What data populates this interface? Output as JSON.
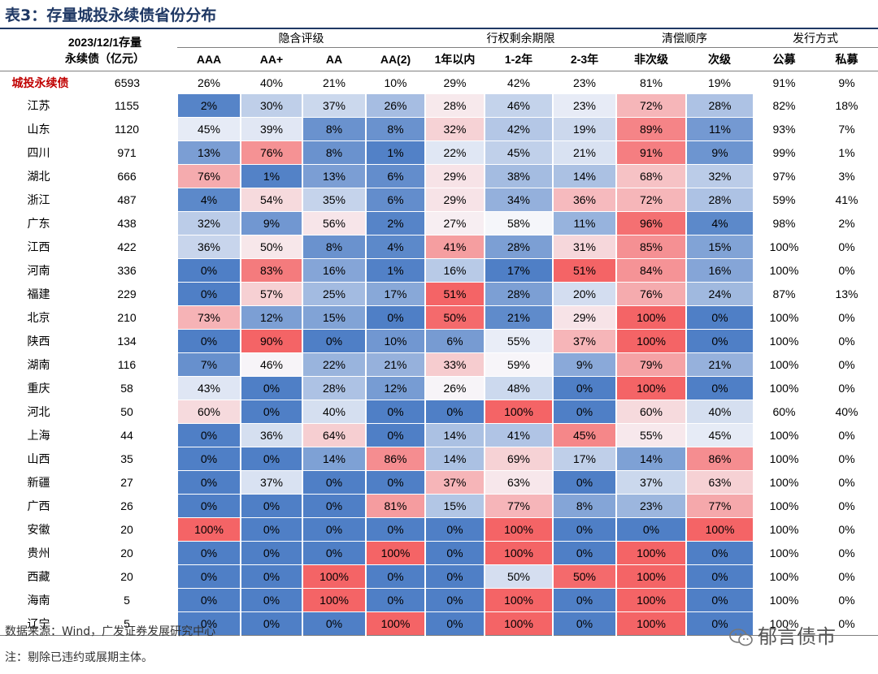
{
  "title": "表3：存量城投永续债省份分布",
  "header": {
    "col0": [
      "2023/12/1存量",
      "永续债（亿元）"
    ],
    "groups": [
      "隐含评级",
      "行权剩余期限",
      "清偿顺序",
      "发行方式"
    ],
    "subheaders": [
      "AAA",
      "AA+",
      "AA",
      "AA(2)",
      "1年以内",
      "1-2年",
      "2-3年",
      "非次级",
      "次级",
      "公募",
      "私募"
    ]
  },
  "total": {
    "name": "城投永续债",
    "value": "6593",
    "cells": [
      "26%",
      "40%",
      "21%",
      "10%",
      "29%",
      "42%",
      "23%",
      "81%",
      "19%",
      "91%",
      "9%"
    ]
  },
  "rows": [
    {
      "name": "江苏",
      "value": "1155",
      "cells": [
        "2%",
        "30%",
        "37%",
        "26%",
        "28%",
        "46%",
        "23%",
        "72%",
        "28%",
        "82%",
        "18%"
      ]
    },
    {
      "name": "山东",
      "value": "1120",
      "cells": [
        "45%",
        "39%",
        "8%",
        "8%",
        "32%",
        "42%",
        "19%",
        "89%",
        "11%",
        "93%",
        "7%"
      ]
    },
    {
      "name": "四川",
      "value": "971",
      "cells": [
        "13%",
        "76%",
        "8%",
        "1%",
        "22%",
        "45%",
        "21%",
        "91%",
        "9%",
        "99%",
        "1%"
      ]
    },
    {
      "name": "湖北",
      "value": "666",
      "cells": [
        "76%",
        "1%",
        "13%",
        "6%",
        "29%",
        "38%",
        "14%",
        "68%",
        "32%",
        "97%",
        "3%"
      ]
    },
    {
      "name": "浙江",
      "value": "487",
      "cells": [
        "4%",
        "54%",
        "35%",
        "6%",
        "29%",
        "34%",
        "36%",
        "72%",
        "28%",
        "59%",
        "41%"
      ]
    },
    {
      "name": "广东",
      "value": "438",
      "cells": [
        "32%",
        "9%",
        "56%",
        "2%",
        "27%",
        "58%",
        "11%",
        "96%",
        "4%",
        "98%",
        "2%"
      ]
    },
    {
      "name": "江西",
      "value": "422",
      "cells": [
        "36%",
        "50%",
        "8%",
        "4%",
        "41%",
        "28%",
        "31%",
        "85%",
        "15%",
        "100%",
        "0%"
      ]
    },
    {
      "name": "河南",
      "value": "336",
      "cells": [
        "0%",
        "83%",
        "16%",
        "1%",
        "16%",
        "17%",
        "51%",
        "84%",
        "16%",
        "100%",
        "0%"
      ]
    },
    {
      "name": "福建",
      "value": "229",
      "cells": [
        "0%",
        "57%",
        "25%",
        "17%",
        "51%",
        "28%",
        "20%",
        "76%",
        "24%",
        "87%",
        "13%"
      ]
    },
    {
      "name": "北京",
      "value": "210",
      "cells": [
        "73%",
        "12%",
        "15%",
        "0%",
        "50%",
        "21%",
        "29%",
        "100%",
        "0%",
        "100%",
        "0%"
      ]
    },
    {
      "name": "陕西",
      "value": "134",
      "cells": [
        "0%",
        "90%",
        "0%",
        "10%",
        "6%",
        "55%",
        "37%",
        "100%",
        "0%",
        "100%",
        "0%"
      ]
    },
    {
      "name": "湖南",
      "value": "116",
      "cells": [
        "7%",
        "46%",
        "22%",
        "21%",
        "33%",
        "59%",
        "9%",
        "79%",
        "21%",
        "100%",
        "0%"
      ]
    },
    {
      "name": "重庆",
      "value": "58",
      "cells": [
        "43%",
        "0%",
        "28%",
        "12%",
        "26%",
        "48%",
        "0%",
        "100%",
        "0%",
        "100%",
        "0%"
      ]
    },
    {
      "name": "河北",
      "value": "50",
      "cells": [
        "60%",
        "0%",
        "40%",
        "0%",
        "0%",
        "100%",
        "0%",
        "60%",
        "40%",
        "60%",
        "40%"
      ]
    },
    {
      "name": "上海",
      "value": "44",
      "cells": [
        "0%",
        "36%",
        "64%",
        "0%",
        "14%",
        "41%",
        "45%",
        "55%",
        "45%",
        "100%",
        "0%"
      ]
    },
    {
      "name": "山西",
      "value": "35",
      "cells": [
        "0%",
        "0%",
        "14%",
        "86%",
        "14%",
        "69%",
        "17%",
        "14%",
        "86%",
        "100%",
        "0%"
      ]
    },
    {
      "name": "新疆",
      "value": "27",
      "cells": [
        "0%",
        "37%",
        "0%",
        "0%",
        "37%",
        "63%",
        "0%",
        "37%",
        "63%",
        "100%",
        "0%"
      ]
    },
    {
      "name": "广西",
      "value": "26",
      "cells": [
        "0%",
        "0%",
        "0%",
        "81%",
        "15%",
        "77%",
        "8%",
        "23%",
        "77%",
        "100%",
        "0%"
      ]
    },
    {
      "name": "安徽",
      "value": "20",
      "cells": [
        "100%",
        "0%",
        "0%",
        "0%",
        "0%",
        "100%",
        "0%",
        "0%",
        "100%",
        "100%",
        "0%"
      ]
    },
    {
      "name": "贵州",
      "value": "20",
      "cells": [
        "0%",
        "0%",
        "0%",
        "100%",
        "0%",
        "100%",
        "0%",
        "100%",
        "0%",
        "100%",
        "0%"
      ]
    },
    {
      "name": "西藏",
      "value": "20",
      "cells": [
        "0%",
        "0%",
        "100%",
        "0%",
        "0%",
        "50%",
        "50%",
        "100%",
        "0%",
        "100%",
        "0%"
      ]
    },
    {
      "name": "海南",
      "value": "5",
      "cells": [
        "0%",
        "0%",
        "100%",
        "0%",
        "0%",
        "100%",
        "0%",
        "100%",
        "0%",
        "100%",
        "0%"
      ]
    },
    {
      "name": "辽宁",
      "value": "5",
      "cells": [
        "0%",
        "0%",
        "0%",
        "100%",
        "0%",
        "100%",
        "0%",
        "100%",
        "0%",
        "100%",
        "0%"
      ]
    }
  ],
  "colors": {
    "low": "#4f7fc6",
    "mid": "#f7f7fb",
    "high": "#f46466",
    "title": "#1f3864",
    "total_name": "#c00000",
    "highlight": "#e00000"
  },
  "footer": {
    "source": "数据来源：Wind，广发证券发展研究中心",
    "note": "注：剔除已违约或展期主体。"
  },
  "brand": {
    "icon": "wechat-icon",
    "name": "郁言债市"
  }
}
